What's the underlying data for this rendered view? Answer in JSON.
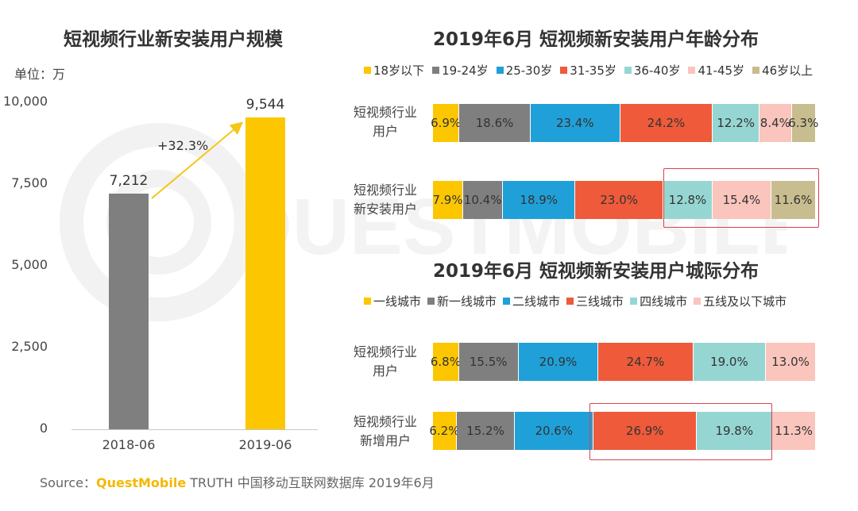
{
  "watermark": "QUESTMOBILE",
  "left_chart": {
    "title": "短视频行业新安装用户规模",
    "unit": "单位：万",
    "growth_label": "+32.3%",
    "colors": [
      "#7f7f7f",
      "#fcc600"
    ]
  },
  "right_top": {
    "title": "2019年6月 短视频新安装用户年龄分布",
    "legend": [
      "18岁以下",
      "19-24岁",
      "25-30岁",
      "31-35岁",
      "36-40岁",
      "41-45岁",
      "46岁以上"
    ],
    "colors": [
      "#fcc600",
      "#7f7f7f",
      "#20a0d8",
      "#ee5a3a",
      "#95d6d2",
      "#f9c5bc",
      "#c8bd8e"
    ],
    "rows": [
      {
        "label_line1": "短视频行业",
        "label_line2": "用户",
        "values": [
          6.9,
          18.6,
          23.4,
          24.2,
          12.2,
          8.4,
          6.3
        ]
      },
      {
        "label_line1": "短视频行业",
        "label_line2": "新安装用户",
        "values": [
          7.9,
          10.4,
          18.9,
          23.0,
          12.8,
          15.4,
          11.6
        ]
      }
    ]
  },
  "right_bottom": {
    "title": "2019年6月 短视频新安装用户城际分布",
    "legend": [
      "一线城市",
      "新一线城市",
      "二线城市",
      "三线城市",
      "四线城市",
      "五线及以下城市"
    ],
    "colors": [
      "#fcc600",
      "#7f7f7f",
      "#20a0d8",
      "#ee5a3a",
      "#95d6d2",
      "#f9c5bc"
    ],
    "rows": [
      {
        "label_line1": "短视频行业",
        "label_line2": "用户",
        "values": [
          6.8,
          15.5,
          20.9,
          24.7,
          19.0,
          13.0
        ]
      },
      {
        "label_line1": "短视频行业",
        "label_line2": "新增用户",
        "values": [
          6.2,
          15.2,
          20.6,
          26.9,
          19.8,
          11.3
        ]
      }
    ]
  },
  "source": {
    "prefix": "Source：",
    "brand": "QuestMobile",
    "rest": " TRUTH 中国移动互联网数据库 2019年6月"
  },
  "chart_data": [
    {
      "type": "bar",
      "title": "短视频行业新安装用户规模",
      "ylabel": "单位：万",
      "categories": [
        "2018-06",
        "2019-06"
      ],
      "values": [
        7212,
        9544
      ],
      "value_labels": [
        "7,212",
        "9,544"
      ],
      "yticks": [
        "0",
        "2,500",
        "5,000",
        "7,500",
        "10,000"
      ],
      "ylim": [
        0,
        10000
      ],
      "annotation": "+32.3%"
    },
    {
      "type": "bar",
      "orientation": "horizontal-stacked-100",
      "title": "2019年6月 短视频新安装用户年龄分布",
      "categories": [
        "短视频行业用户",
        "短视频行业新安装用户"
      ],
      "series": [
        {
          "name": "18岁以下",
          "values": [
            6.9,
            7.9
          ]
        },
        {
          "name": "19-24岁",
          "values": [
            18.6,
            10.4
          ]
        },
        {
          "name": "25-30岁",
          "values": [
            23.4,
            18.9
          ]
        },
        {
          "name": "31-35岁",
          "values": [
            24.2,
            23.0
          ]
        },
        {
          "name": "36-40岁",
          "values": [
            12.2,
            12.8
          ]
        },
        {
          "name": "41-45岁",
          "values": [
            8.4,
            15.4
          ]
        },
        {
          "name": "46岁以上",
          "values": [
            6.3,
            11.6
          ]
        }
      ]
    },
    {
      "type": "bar",
      "orientation": "horizontal-stacked-100",
      "title": "2019年6月 短视频新安装用户城际分布",
      "categories": [
        "短视频行业用户",
        "短视频行业新增用户"
      ],
      "series": [
        {
          "name": "一线城市",
          "values": [
            6.8,
            6.2
          ]
        },
        {
          "name": "新一线城市",
          "values": [
            15.5,
            15.2
          ]
        },
        {
          "name": "二线城市",
          "values": [
            20.9,
            20.6
          ]
        },
        {
          "name": "三线城市",
          "values": [
            24.7,
            26.9
          ]
        },
        {
          "name": "四线城市",
          "values": [
            19.0,
            19.8
          ]
        },
        {
          "name": "五线及以下城市",
          "values": [
            13.0,
            11.3
          ]
        }
      ]
    }
  ]
}
